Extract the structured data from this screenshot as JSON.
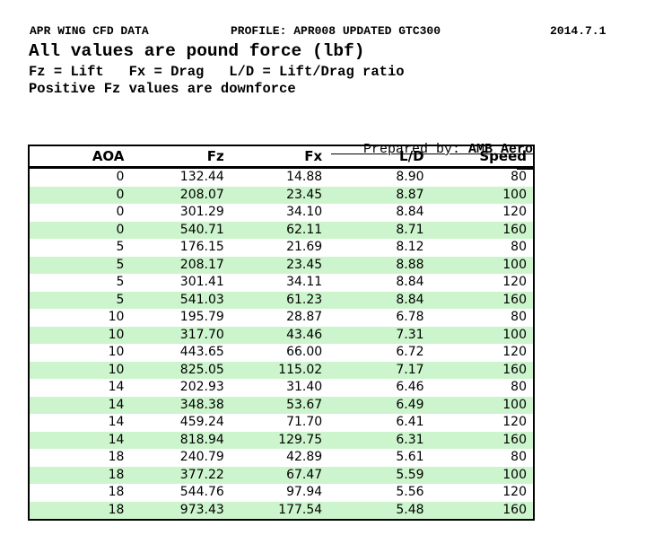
{
  "document": {
    "title_left": "APR WING CFD DATA",
    "title_center": "PROFILE: APR008 UPDATED GTC300",
    "title_right": "2014.7.1",
    "subtitle": "All values are pound force (lbf)",
    "legend": "Fz = Lift   Fx = Drag   L/D = Lift/Drag ratio",
    "note": "Positive Fz values are downforce",
    "prepared_by_label": "Prepared by: ",
    "prepared_by_value": "AMB Aero"
  },
  "table": {
    "columns": [
      "AOA",
      "Fz",
      "Fx",
      "L/D",
      "Speed"
    ],
    "rows": [
      [
        "0",
        "132.44",
        "14.88",
        "8.90",
        "80"
      ],
      [
        "0",
        "208.07",
        "23.45",
        "8.87",
        "100"
      ],
      [
        "0",
        "301.29",
        "34.10",
        "8.84",
        "120"
      ],
      [
        "0",
        "540.71",
        "62.11",
        "8.71",
        "160"
      ],
      [
        "5",
        "176.15",
        "21.69",
        "8.12",
        "80"
      ],
      [
        "5",
        "208.17",
        "23.45",
        "8.88",
        "100"
      ],
      [
        "5",
        "301.41",
        "34.11",
        "8.84",
        "120"
      ],
      [
        "5",
        "541.03",
        "61.23",
        "8.84",
        "160"
      ],
      [
        "10",
        "195.79",
        "28.87",
        "6.78",
        "80"
      ],
      [
        "10",
        "317.70",
        "43.46",
        "7.31",
        "100"
      ],
      [
        "10",
        "443.65",
        "66.00",
        "6.72",
        "120"
      ],
      [
        "10",
        "825.05",
        "115.02",
        "7.17",
        "160"
      ],
      [
        "14",
        "202.93",
        "31.40",
        "6.46",
        "80"
      ],
      [
        "14",
        "348.38",
        "53.67",
        "6.49",
        "100"
      ],
      [
        "14",
        "459.24",
        "71.70",
        "6.41",
        "120"
      ],
      [
        "14",
        "818.94",
        "129.75",
        "6.31",
        "160"
      ],
      [
        "18",
        "240.79",
        "42.89",
        "5.61",
        "80"
      ],
      [
        "18",
        "377.22",
        "67.47",
        "5.59",
        "100"
      ],
      [
        "18",
        "544.76",
        "97.94",
        "5.56",
        "120"
      ],
      [
        "18",
        "973.43",
        "177.54",
        "5.48",
        "160"
      ]
    ]
  },
  "colors": {
    "row_stripe": "#cdf5cd",
    "table_border": "#000000",
    "text": "#000000",
    "background": "#ffffff"
  }
}
